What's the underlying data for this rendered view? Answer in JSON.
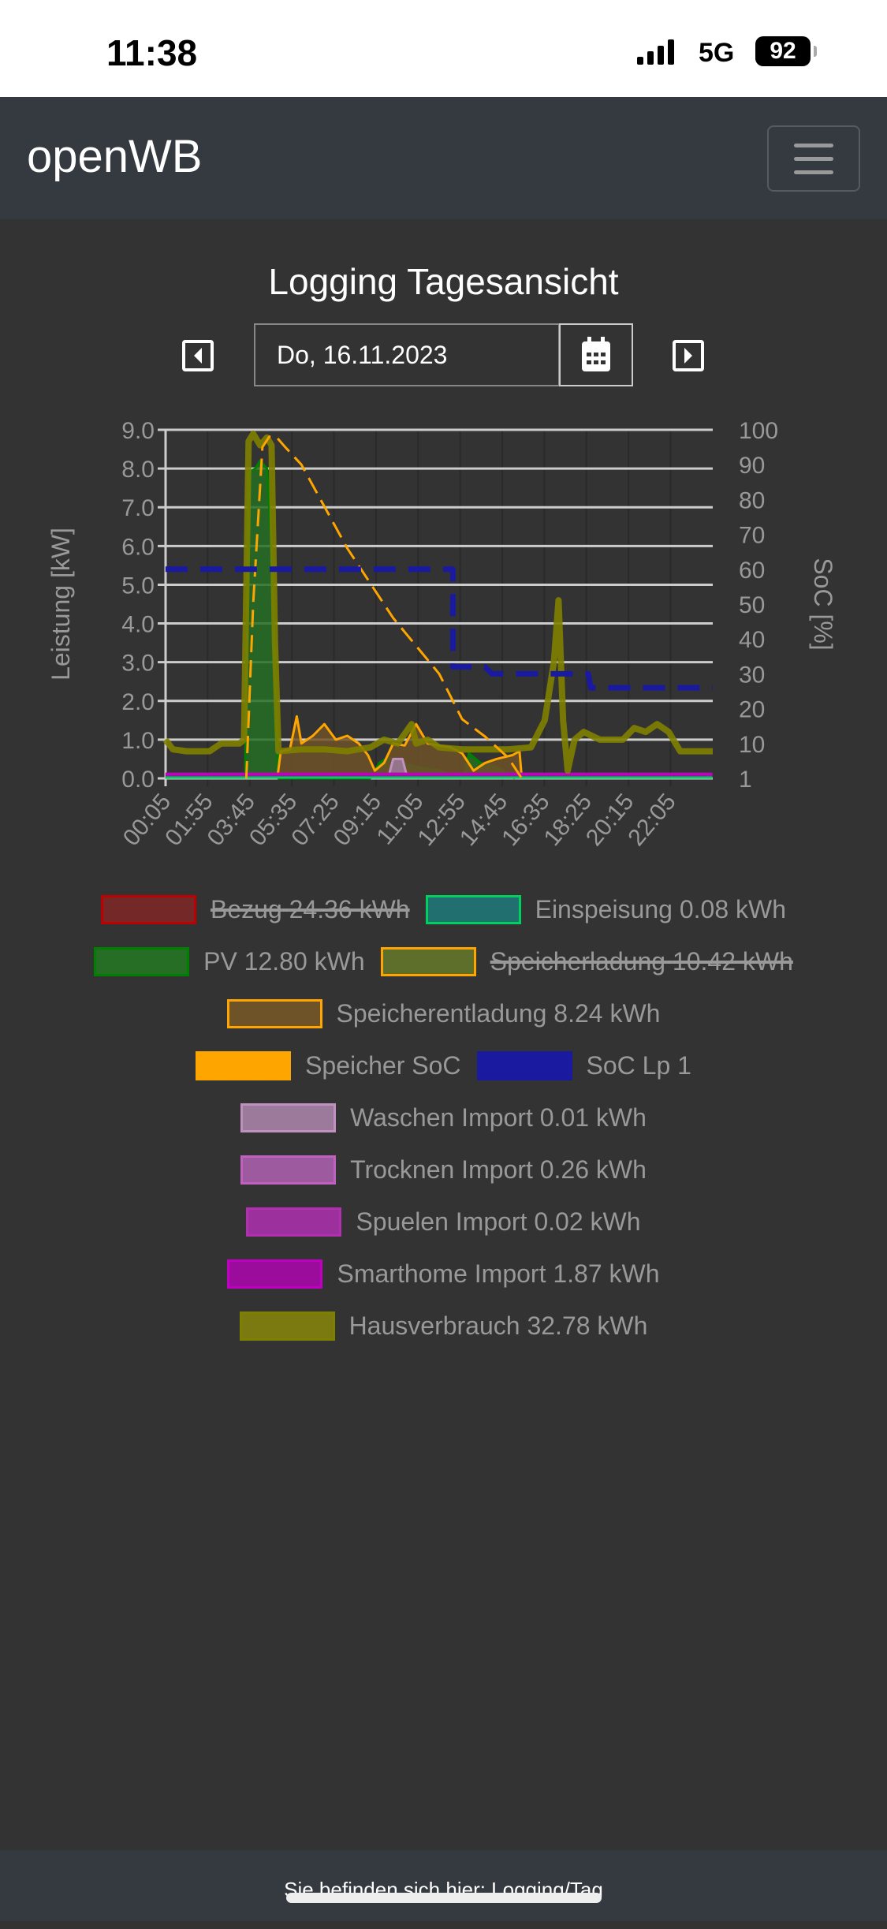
{
  "status_bar": {
    "time": "11:38",
    "network": "5G",
    "battery": "92"
  },
  "navbar": {
    "brand": "openWB",
    "menu_icon": "hamburger-icon"
  },
  "page": {
    "title": "Logging Tagesansicht",
    "date": "Do, 16.11.2023"
  },
  "footer": {
    "text": "Sie befinden sich hier: Logging/Tag"
  },
  "chart_data": {
    "type": "line",
    "xlabel": "",
    "ylabel": "Leistung [kW]",
    "y2label": "SoC [%]",
    "xlim_hours": [
      0.083,
      23.92
    ],
    "ylim": [
      0,
      9
    ],
    "y2lim": [
      0,
      100
    ],
    "xticks": [
      "00:05",
      "01:55",
      "03:45",
      "05:35",
      "07:25",
      "09:15",
      "11:05",
      "12:55",
      "14:45",
      "16:35",
      "18:25",
      "20:15",
      "22:05"
    ],
    "yticks": [
      "0.0",
      "1.0",
      "2.0",
      "3.0",
      "4.0",
      "5.0",
      "6.0",
      "7.0",
      "8.0",
      "9.0"
    ],
    "y2ticks": [
      "1",
      "10",
      "20",
      "30",
      "40",
      "50",
      "60",
      "70",
      "80",
      "90",
      "100"
    ],
    "grid": true,
    "series": [
      {
        "name": "Bezug",
        "total": "24.36 kWh",
        "hidden": true,
        "color": "#c00000",
        "fill": "#742828"
      },
      {
        "name": "Einspeisung",
        "total": "0.08 kWh",
        "color": "#00d060",
        "fill": "#226f6f",
        "points": [
          [
            0.08,
            0.02
          ],
          [
            23.9,
            0.02
          ]
        ]
      },
      {
        "name": "PV",
        "total": "12.80 kWh",
        "color": "#008000",
        "fill": "#266e26",
        "points": [
          [
            3.55,
            0
          ],
          [
            3.7,
            7.9
          ],
          [
            4.0,
            8.0
          ],
          [
            4.2,
            8.2
          ],
          [
            4.5,
            8.0
          ],
          [
            4.7,
            6.0
          ],
          [
            4.85,
            3.0
          ],
          [
            5.0,
            0
          ],
          [
            9.0,
            0
          ],
          [
            9.4,
            0.4
          ],
          [
            9.8,
            0.55
          ],
          [
            10.3,
            0.4
          ],
          [
            11,
            0.3
          ],
          [
            12,
            0.2
          ],
          [
            12.7,
            0.05
          ],
          [
            13.1,
            0.1
          ],
          [
            13.3,
            0.65
          ],
          [
            13.8,
            0.4
          ],
          [
            14.5,
            0.3
          ],
          [
            15.0,
            0.1
          ],
          [
            15.3,
            0
          ]
        ]
      },
      {
        "name": "Speicherladung",
        "total": "10.42 kWh",
        "hidden": true,
        "color": "#ffa500",
        "fill": "#5e6e2b"
      },
      {
        "name": "Speicherentladung",
        "total": "8.24 kWh",
        "color": "#ffa500",
        "fill": "#6e5228",
        "points": [
          [
            4.95,
            0
          ],
          [
            5.1,
            0.7
          ],
          [
            5.5,
            0.75
          ],
          [
            5.8,
            1.6
          ],
          [
            6.0,
            0.9
          ],
          [
            6.5,
            1.1
          ],
          [
            7.0,
            1.4
          ],
          [
            7.5,
            1.0
          ],
          [
            8.0,
            1.1
          ],
          [
            8.5,
            0.9
          ],
          [
            8.9,
            0.6
          ],
          [
            9.2,
            0.2
          ],
          [
            9.6,
            0.4
          ],
          [
            10.0,
            0.9
          ],
          [
            10.5,
            0.85
          ],
          [
            11.0,
            1.4
          ],
          [
            11.5,
            0.9
          ],
          [
            12.0,
            0.85
          ],
          [
            12.5,
            0.8
          ],
          [
            13.0,
            0.65
          ],
          [
            13.5,
            0.2
          ],
          [
            14.0,
            0.4
          ],
          [
            14.5,
            0.5
          ],
          [
            15.2,
            0.6
          ],
          [
            15.5,
            0.7
          ],
          [
            15.6,
            0
          ]
        ]
      },
      {
        "name": "Speicher SoC",
        "color": "#ffa500",
        "dashed": true,
        "axis": "right",
        "points": [
          [
            3.6,
            0
          ],
          [
            3.9,
            50
          ],
          [
            4.3,
            95
          ],
          [
            4.6,
            98
          ],
          [
            4.9,
            98
          ],
          [
            5.3,
            95
          ],
          [
            6.0,
            90
          ],
          [
            8.0,
            66
          ],
          [
            10.0,
            46
          ],
          [
            12.0,
            30
          ],
          [
            13.0,
            17
          ],
          [
            14.0,
            12
          ],
          [
            15.0,
            6
          ],
          [
            15.6,
            0
          ]
        ]
      },
      {
        "name": "SoC Lp 1",
        "color": "#1a1aa0",
        "dashed": true,
        "axis": "right",
        "points": [
          [
            0.08,
            60
          ],
          [
            12.6,
            60
          ],
          [
            12.6,
            32
          ],
          [
            14.0,
            32
          ],
          [
            14.3,
            30
          ],
          [
            18.5,
            30
          ],
          [
            18.6,
            26
          ],
          [
            23.92,
            26
          ]
        ]
      },
      {
        "name": "Waschen Import",
        "total": "0.01 kWh",
        "color": "#c090c0",
        "fill": "#9c7a9c",
        "points": [
          [
            9.8,
            0.05
          ],
          [
            10.0,
            0.5
          ],
          [
            10.4,
            0.5
          ],
          [
            10.6,
            0.05
          ]
        ]
      },
      {
        "name": "Trocknen Import",
        "total": "0.26 kWh",
        "color": "#c060c0",
        "fill": "#9e5a9e",
        "points": [
          [
            0.08,
            0.1
          ],
          [
            23.9,
            0.1
          ]
        ]
      },
      {
        "name": "Spuelen Import",
        "total": "0.02 kWh",
        "color": "#b030b0",
        "fill": "#9c309c",
        "points": [
          [
            0.08,
            0.05
          ],
          [
            23.9,
            0.05
          ]
        ]
      },
      {
        "name": "Smarthome Import",
        "total": "1.87 kWh",
        "color": "#c000c0",
        "fill": "#9c0c9c",
        "points": [
          [
            0.08,
            0.12
          ],
          [
            23.9,
            0.12
          ]
        ]
      },
      {
        "name": "Hausverbrauch",
        "total": "32.78 kWh",
        "color": "#808000",
        "fill": "#7a7a10",
        "points": [
          [
            0.08,
            1.0
          ],
          [
            0.4,
            0.75
          ],
          [
            1.0,
            0.7
          ],
          [
            2.0,
            0.7
          ],
          [
            2.5,
            0.9
          ],
          [
            3.3,
            0.9
          ],
          [
            3.5,
            1.0
          ],
          [
            3.7,
            8.7
          ],
          [
            3.9,
            8.9
          ],
          [
            4.2,
            8.6
          ],
          [
            4.5,
            8.8
          ],
          [
            4.7,
            8.6
          ],
          [
            4.85,
            3.5
          ],
          [
            5.0,
            0.7
          ],
          [
            6.0,
            0.75
          ],
          [
            7.0,
            0.75
          ],
          [
            8.0,
            0.7
          ],
          [
            9.0,
            0.8
          ],
          [
            9.6,
            1.0
          ],
          [
            10.2,
            0.9
          ],
          [
            10.8,
            1.4
          ],
          [
            11.0,
            0.9
          ],
          [
            11.5,
            1.0
          ],
          [
            12.0,
            0.8
          ],
          [
            13.0,
            0.75
          ],
          [
            14.0,
            0.75
          ],
          [
            15.0,
            0.75
          ],
          [
            16.0,
            0.8
          ],
          [
            16.6,
            1.5
          ],
          [
            17.0,
            3.0
          ],
          [
            17.2,
            4.6
          ],
          [
            17.4,
            1.5
          ],
          [
            17.6,
            0.2
          ],
          [
            17.9,
            1.0
          ],
          [
            18.3,
            1.2
          ],
          [
            19.0,
            1.0
          ],
          [
            20.0,
            1.0
          ],
          [
            20.5,
            1.3
          ],
          [
            21.0,
            1.2
          ],
          [
            21.5,
            1.4
          ],
          [
            22.0,
            1.2
          ],
          [
            22.5,
            0.7
          ],
          [
            23.92,
            0.7
          ]
        ]
      }
    ]
  }
}
